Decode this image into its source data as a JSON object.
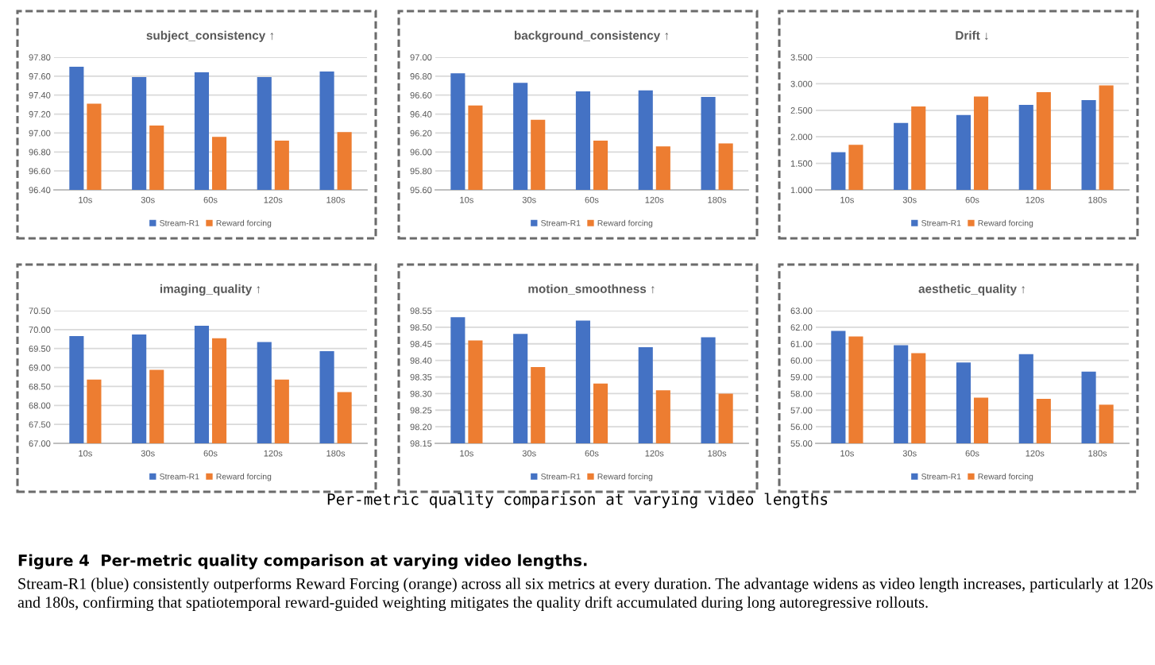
{
  "chart_data": [
    {
      "type": "bar",
      "title": "subject_consistency ↑",
      "categories": [
        "10s",
        "30s",
        "60s",
        "120s",
        "180s"
      ],
      "series": [
        {
          "name": "Stream-R1",
          "color": "#4472c4",
          "values": [
            97.7,
            97.59,
            97.64,
            97.59,
            97.65
          ]
        },
        {
          "name": "Reward forcing",
          "color": "#ed7d31",
          "values": [
            97.31,
            97.08,
            96.96,
            96.92,
            97.01
          ]
        }
      ],
      "ylim": [
        96.4,
        97.8
      ],
      "yticks": [
        {
          "value": 96.4,
          "label": "96.40"
        },
        {
          "value": 96.6,
          "label": "96.60"
        },
        {
          "value": 96.8,
          "label": "96.80"
        },
        {
          "value": 97.0,
          "label": "97.00"
        },
        {
          "value": 97.2,
          "label": "97.20"
        },
        {
          "value": 97.4,
          "label": "97.40"
        },
        {
          "value": 97.6,
          "label": "97.60"
        },
        {
          "value": 97.8,
          "label": "97.80"
        }
      ],
      "grid": "y",
      "legend": "bottom"
    },
    {
      "type": "bar",
      "title": "background_consistency ↑",
      "categories": [
        "10s",
        "30s",
        "60s",
        "120s",
        "180s"
      ],
      "series": [
        {
          "name": "Stream-R1",
          "color": "#4472c4",
          "values": [
            96.83,
            96.73,
            96.64,
            96.65,
            96.58
          ]
        },
        {
          "name": "Reward forcing",
          "color": "#ed7d31",
          "values": [
            96.49,
            96.34,
            96.12,
            96.06,
            96.09
          ]
        }
      ],
      "ylim": [
        95.6,
        97.0
      ],
      "yticks": [
        {
          "value": 95.6,
          "label": "95.60"
        },
        {
          "value": 95.8,
          "label": "95.80"
        },
        {
          "value": 96.0,
          "label": "96.00"
        },
        {
          "value": 96.2,
          "label": "96.20"
        },
        {
          "value": 96.4,
          "label": "96.40"
        },
        {
          "value": 96.6,
          "label": "96.60"
        },
        {
          "value": 96.8,
          "label": "96.80"
        },
        {
          "value": 97.0,
          "label": "97.00"
        }
      ],
      "grid": "y",
      "legend": "bottom"
    },
    {
      "type": "bar",
      "title": "Drift ↓",
      "categories": [
        "10s",
        "30s",
        "60s",
        "120s",
        "180s"
      ],
      "series": [
        {
          "name": "Stream-R1",
          "color": "#4472c4",
          "values": [
            1.71,
            2.26,
            2.41,
            2.6,
            2.69
          ]
        },
        {
          "name": "Reward forcing",
          "color": "#ed7d31",
          "values": [
            1.85,
            2.57,
            2.76,
            2.84,
            2.97
          ]
        }
      ],
      "ylim": [
        1.0,
        3.5
      ],
      "yticks": [
        {
          "value": 1.0,
          "label": "1.000"
        },
        {
          "value": 1.5,
          "label": "1.500"
        },
        {
          "value": 2.0,
          "label": "2.000"
        },
        {
          "value": 2.5,
          "label": "2.500"
        },
        {
          "value": 3.0,
          "label": "3.000"
        },
        {
          "value": 3.5,
          "label": "3.500"
        }
      ],
      "grid": "y",
      "legend": "bottom"
    },
    {
      "type": "bar",
      "title": "imaging_quality ↑",
      "categories": [
        "10s",
        "30s",
        "60s",
        "120s",
        "180s"
      ],
      "series": [
        {
          "name": "Stream-R1",
          "color": "#4472c4",
          "values": [
            69.83,
            69.87,
            70.1,
            69.67,
            69.43
          ]
        },
        {
          "name": "Reward forcing",
          "color": "#ed7d31",
          "values": [
            68.68,
            68.94,
            69.77,
            68.68,
            68.35
          ]
        }
      ],
      "ylim": [
        67.0,
        70.5
      ],
      "yticks": [
        {
          "value": 67.0,
          "label": "67.00"
        },
        {
          "value": 67.5,
          "label": "67.50"
        },
        {
          "value": 68.0,
          "label": "68.00"
        },
        {
          "value": 68.5,
          "label": "68.50"
        },
        {
          "value": 69.0,
          "label": "69.00"
        },
        {
          "value": 69.5,
          "label": "69.50"
        },
        {
          "value": 70.0,
          "label": "70.00"
        },
        {
          "value": 70.5,
          "label": "70.50"
        }
      ],
      "grid": "y",
      "legend": "bottom"
    },
    {
      "type": "bar",
      "title": "motion_smoothness ↑",
      "categories": [
        "10s",
        "30s",
        "60s",
        "120s",
        "180s"
      ],
      "series": [
        {
          "name": "Stream-R1",
          "color": "#4472c4",
          "values": [
            98.53,
            98.48,
            98.52,
            98.44,
            98.47
          ]
        },
        {
          "name": "Reward forcing",
          "color": "#ed7d31",
          "values": [
            98.46,
            98.38,
            98.33,
            98.31,
            98.3
          ]
        }
      ],
      "ylim": [
        98.15,
        98.55
      ],
      "yticks": [
        {
          "value": 98.15,
          "label": "98.15"
        },
        {
          "value": 98.2,
          "label": "98.20"
        },
        {
          "value": 98.25,
          "label": "98.25"
        },
        {
          "value": 98.3,
          "label": "98.30"
        },
        {
          "value": 98.35,
          "label": "98.35"
        },
        {
          "value": 98.4,
          "label": "98.40"
        },
        {
          "value": 98.45,
          "label": "98.45"
        },
        {
          "value": 98.5,
          "label": "98.50"
        },
        {
          "value": 98.55,
          "label": "98.55"
        }
      ],
      "grid": "y",
      "legend": "bottom"
    },
    {
      "type": "bar",
      "title": "aesthetic_quality ↑",
      "categories": [
        "10s",
        "30s",
        "60s",
        "120s",
        "180s"
      ],
      "series": [
        {
          "name": "Stream-R1",
          "color": "#4472c4",
          "values": [
            61.78,
            60.92,
            59.88,
            60.38,
            59.32
          ]
        },
        {
          "name": "Reward forcing",
          "color": "#ed7d31",
          "values": [
            61.44,
            60.44,
            57.75,
            57.68,
            57.33
          ]
        }
      ],
      "ylim": [
        55.0,
        63.0
      ],
      "yticks": [
        {
          "value": 55.0,
          "label": "55.00"
        },
        {
          "value": 56.0,
          "label": "56.00"
        },
        {
          "value": 57.0,
          "label": "57.00"
        },
        {
          "value": 58.0,
          "label": "58.00"
        },
        {
          "value": 59.0,
          "label": "59.00"
        },
        {
          "value": 60.0,
          "label": "60.00"
        },
        {
          "value": 61.0,
          "label": "61.00"
        },
        {
          "value": 62.0,
          "label": "62.00"
        },
        {
          "value": 63.0,
          "label": "63.00"
        }
      ],
      "grid": "y",
      "legend": "bottom",
      "annotations": [
        "Per-metric quality comparison at varying video lengths",
        "Figure 4  Per-metric quality comparison at varying video lengths.",
        "Stream-R1 (blue) consistently outperforms Reward Forcing (orange) across all six metrics at every duration. The advantage widens as video length increases, particularly at 120s and 180s, confirming that spatiotemporal reward-guided weighting mitigates the quality drift accumulated during long autoregressive rollouts."
      ]
    }
  ]
}
